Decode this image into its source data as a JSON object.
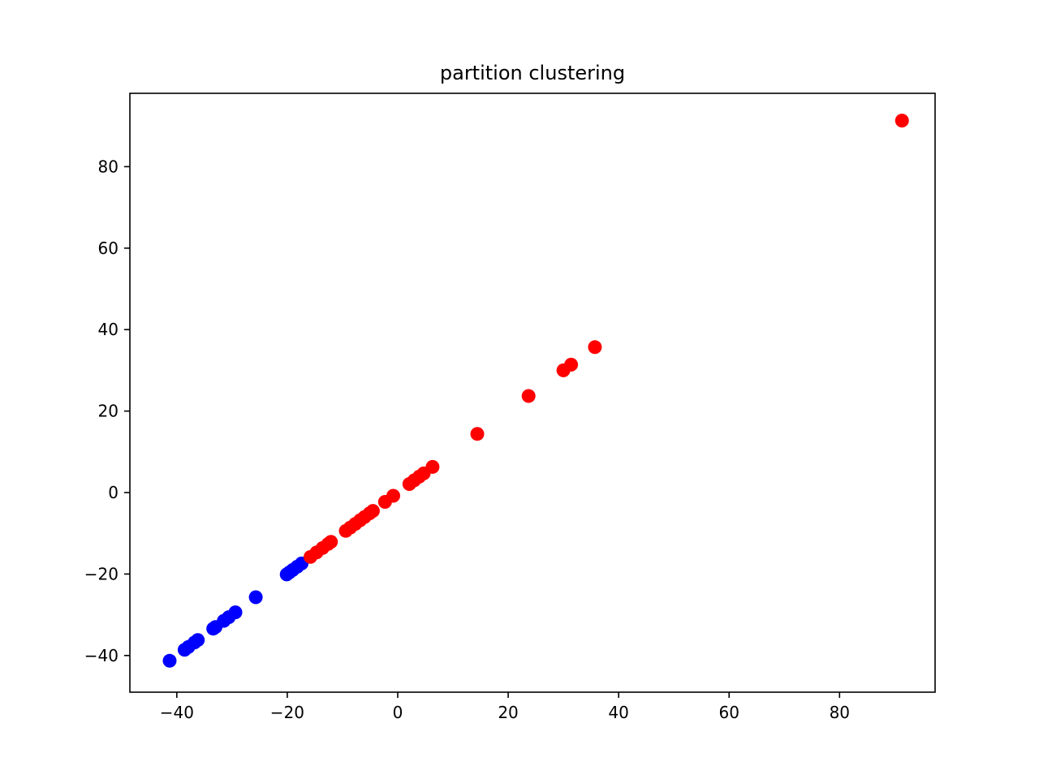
{
  "chart_data": {
    "type": "scatter",
    "title": "partition clustering",
    "xlabel": "",
    "ylabel": "",
    "xlim": [
      -48.5,
      97.3
    ],
    "ylim": [
      -49,
      98
    ],
    "xticks": [
      -40,
      -20,
      0,
      20,
      40,
      60,
      80
    ],
    "yticks": [
      -40,
      -20,
      0,
      20,
      40,
      60,
      80
    ],
    "xtick_labels": [
      "−40",
      "−20",
      "0",
      "20",
      "40",
      "60",
      "80"
    ],
    "ytick_labels": [
      "−40",
      "−20",
      "0",
      "20",
      "40",
      "60",
      "80"
    ],
    "grid": false,
    "series": [
      {
        "color": "#0000ff",
        "points": [
          [
            -41.3,
            -41.3
          ],
          [
            -38.6,
            -38.6
          ],
          [
            -37.9,
            -37.9
          ],
          [
            -36.8,
            -36.8
          ],
          [
            -36.2,
            -36.2
          ],
          [
            -33.4,
            -33.4
          ],
          [
            -33.0,
            -33.0
          ],
          [
            -31.5,
            -31.5
          ],
          [
            -30.6,
            -30.6
          ],
          [
            -29.4,
            -29.4
          ],
          [
            -25.7,
            -25.7
          ],
          [
            -20.1,
            -20.1
          ],
          [
            -19.6,
            -19.6
          ],
          [
            -19.0,
            -19.0
          ],
          [
            -18.2,
            -18.2
          ],
          [
            -17.4,
            -17.4
          ]
        ]
      },
      {
        "color": "#ff0000",
        "points": [
          [
            -15.8,
            -15.8
          ],
          [
            -14.7,
            -14.7
          ],
          [
            -13.6,
            -13.6
          ],
          [
            -12.6,
            -12.6
          ],
          [
            -12.1,
            -12.1
          ],
          [
            -9.4,
            -9.4
          ],
          [
            -8.6,
            -8.6
          ],
          [
            -7.7,
            -7.7
          ],
          [
            -6.8,
            -6.8
          ],
          [
            -6.0,
            -6.0
          ],
          [
            -5.1,
            -5.1
          ],
          [
            -4.5,
            -4.5
          ],
          [
            -2.3,
            -2.3
          ],
          [
            -0.8,
            -0.8
          ],
          [
            2.1,
            2.1
          ],
          [
            3.0,
            3.0
          ],
          [
            3.9,
            3.9
          ],
          [
            4.7,
            4.7
          ],
          [
            6.3,
            6.3
          ],
          [
            14.4,
            14.4
          ],
          [
            23.7,
            23.7
          ],
          [
            30.0,
            30.0
          ],
          [
            31.4,
            31.4
          ],
          [
            35.7,
            35.7
          ],
          [
            91.3,
            91.3
          ]
        ]
      }
    ]
  }
}
